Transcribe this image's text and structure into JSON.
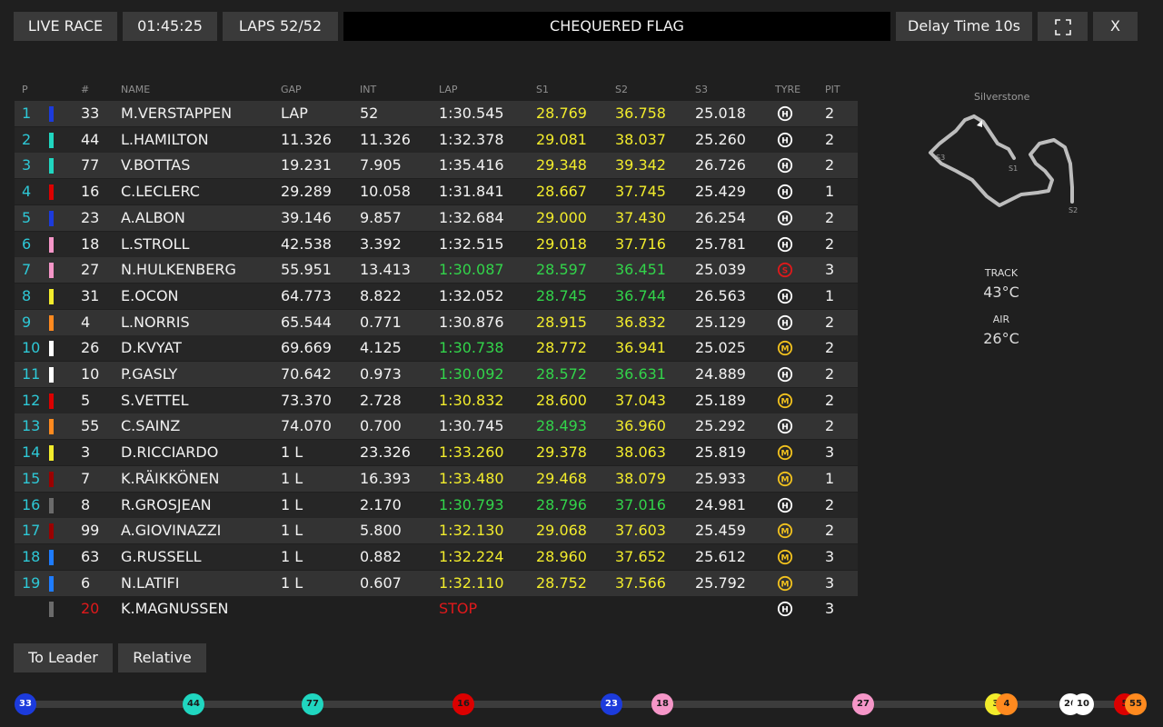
{
  "topbar": {
    "live_race": "LIVE RACE",
    "clock": "01:45:25",
    "laps": "LAPS 52/52",
    "flag": "CHEQUERED FLAG",
    "delay": "Delay Time 10s",
    "close": "X"
  },
  "headers": {
    "p": "P",
    "num": "#",
    "name": "NAME",
    "gap": "GAP",
    "int": "INT",
    "lap": "LAP",
    "s1": "S1",
    "s2": "S2",
    "s3": "S3",
    "tyre": "TYRE",
    "pit": "PIT"
  },
  "rows": [
    {
      "p": "1",
      "num": "33",
      "name": "M.VERSTAPPEN",
      "gap": "LAP",
      "int": "52",
      "lap": "1:30.545",
      "s1": "28.769",
      "s2": "36.758",
      "s3": "25.018",
      "tyre": "H",
      "pit": "2",
      "team": "#1c3bdc",
      "lapc": "white",
      "s1c": "yellow",
      "s2c": "yellow",
      "tc": "#ffffff"
    },
    {
      "p": "2",
      "num": "44",
      "name": "L.HAMILTON",
      "gap": "11.326",
      "int": "11.326",
      "lap": "1:32.378",
      "s1": "29.081",
      "s2": "38.037",
      "s3": "25.260",
      "tyre": "H",
      "pit": "2",
      "team": "#20d6c0",
      "lapc": "white",
      "s1c": "yellow",
      "s2c": "yellow",
      "tc": "#ffffff"
    },
    {
      "p": "3",
      "num": "77",
      "name": "V.BOTTAS",
      "gap": "19.231",
      "int": "7.905",
      "lap": "1:35.416",
      "s1": "29.348",
      "s2": "39.342",
      "s3": "26.726",
      "tyre": "H",
      "pit": "2",
      "team": "#20d6c0",
      "lapc": "white",
      "s1c": "yellow",
      "s2c": "yellow",
      "tc": "#ffffff"
    },
    {
      "p": "4",
      "num": "16",
      "name": "C.LECLERC",
      "gap": "29.289",
      "int": "10.058",
      "lap": "1:31.841",
      "s1": "28.667",
      "s2": "37.745",
      "s3": "25.429",
      "tyre": "H",
      "pit": "1",
      "team": "#dc0000",
      "lapc": "white",
      "s1c": "yellow",
      "s2c": "yellow",
      "tc": "#ffffff"
    },
    {
      "p": "5",
      "num": "23",
      "name": "A.ALBON",
      "gap": "39.146",
      "int": "9.857",
      "lap": "1:32.684",
      "s1": "29.000",
      "s2": "37.430",
      "s3": "26.254",
      "tyre": "H",
      "pit": "2",
      "team": "#1c3bdc",
      "lapc": "white",
      "s1c": "yellow",
      "s2c": "yellow",
      "tc": "#ffffff"
    },
    {
      "p": "6",
      "num": "18",
      "name": "L.STROLL",
      "gap": "42.538",
      "int": "3.392",
      "lap": "1:32.515",
      "s1": "29.018",
      "s2": "37.716",
      "s3": "25.781",
      "tyre": "H",
      "pit": "2",
      "team": "#f596c8",
      "lapc": "white",
      "s1c": "yellow",
      "s2c": "yellow",
      "tc": "#ffffff"
    },
    {
      "p": "7",
      "num": "27",
      "name": "N.HULKENBERG",
      "gap": "55.951",
      "int": "13.413",
      "lap": "1:30.087",
      "s1": "28.597",
      "s2": "36.451",
      "s3": "25.039",
      "tyre": "S",
      "pit": "3",
      "team": "#f596c8",
      "lapc": "green",
      "s1c": "green",
      "s2c": "green",
      "tc": "#e0191b"
    },
    {
      "p": "8",
      "num": "31",
      "name": "E.OCON",
      "gap": "64.773",
      "int": "8.822",
      "lap": "1:32.052",
      "s1": "28.745",
      "s2": "36.744",
      "s3": "26.563",
      "tyre": "H",
      "pit": "1",
      "team": "#f2ec2c",
      "lapc": "white",
      "s1c": "green",
      "s2c": "green",
      "tc": "#ffffff"
    },
    {
      "p": "9",
      "num": "4",
      "name": "L.NORRIS",
      "gap": "65.544",
      "int": "0.771",
      "lap": "1:30.876",
      "s1": "28.915",
      "s2": "36.832",
      "s3": "25.129",
      "tyre": "H",
      "pit": "2",
      "team": "#ff8a1f",
      "lapc": "white",
      "s1c": "yellow",
      "s2c": "yellow",
      "tc": "#ffffff"
    },
    {
      "p": "10",
      "num": "26",
      "name": "D.KVYAT",
      "gap": "69.669",
      "int": "4.125",
      "lap": "1:30.738",
      "s1": "28.772",
      "s2": "36.941",
      "s3": "25.025",
      "tyre": "M",
      "pit": "2",
      "team": "#ffffff",
      "lapc": "green",
      "s1c": "yellow",
      "s2c": "yellow",
      "tc": "#f2c21e"
    },
    {
      "p": "11",
      "num": "10",
      "name": "P.GASLY",
      "gap": "70.642",
      "int": "0.973",
      "lap": "1:30.092",
      "s1": "28.572",
      "s2": "36.631",
      "s3": "24.889",
      "tyre": "H",
      "pit": "2",
      "team": "#ffffff",
      "lapc": "green",
      "s1c": "green",
      "s2c": "green",
      "tc": "#ffffff"
    },
    {
      "p": "12",
      "num": "5",
      "name": "S.VETTEL",
      "gap": "73.370",
      "int": "2.728",
      "lap": "1:30.832",
      "s1": "28.600",
      "s2": "37.043",
      "s3": "25.189",
      "tyre": "M",
      "pit": "2",
      "team": "#dc0000",
      "lapc": "yellow",
      "s1c": "yellow",
      "s2c": "yellow",
      "tc": "#f2c21e"
    },
    {
      "p": "13",
      "num": "55",
      "name": "C.SAINZ",
      "gap": "74.070",
      "int": "0.700",
      "lap": "1:30.745",
      "s1": "28.493",
      "s2": "36.960",
      "s3": "25.292",
      "tyre": "H",
      "pit": "2",
      "team": "#ff8a1f",
      "lapc": "white",
      "s1c": "green",
      "s2c": "yellow",
      "tc": "#ffffff"
    },
    {
      "p": "14",
      "num": "3",
      "name": "D.RICCIARDO",
      "gap": "1 L",
      "int": "23.326",
      "lap": "1:33.260",
      "s1": "29.378",
      "s2": "38.063",
      "s3": "25.819",
      "tyre": "M",
      "pit": "3",
      "team": "#f2ec2c",
      "lapc": "yellow",
      "s1c": "yellow",
      "s2c": "yellow",
      "tc": "#f2c21e"
    },
    {
      "p": "15",
      "num": "7",
      "name": "K.RÄIKKÖNEN",
      "gap": "1 L",
      "int": "16.393",
      "lap": "1:33.480",
      "s1": "29.468",
      "s2": "38.079",
      "s3": "25.933",
      "tyre": "M",
      "pit": "1",
      "team": "#9b0000",
      "lapc": "yellow",
      "s1c": "yellow",
      "s2c": "yellow",
      "tc": "#f2c21e"
    },
    {
      "p": "16",
      "num": "8",
      "name": "R.GROSJEAN",
      "gap": "1 L",
      "int": "2.170",
      "lap": "1:30.793",
      "s1": "28.796",
      "s2": "37.016",
      "s3": "24.981",
      "tyre": "H",
      "pit": "2",
      "team": "#6b6b6b",
      "lapc": "green",
      "s1c": "green",
      "s2c": "green",
      "tc": "#ffffff"
    },
    {
      "p": "17",
      "num": "99",
      "name": "A.GIOVINAZZI",
      "gap": "1 L",
      "int": "5.800",
      "lap": "1:32.130",
      "s1": "29.068",
      "s2": "37.603",
      "s3": "25.459",
      "tyre": "M",
      "pit": "2",
      "team": "#9b0000",
      "lapc": "yellow",
      "s1c": "yellow",
      "s2c": "yellow",
      "tc": "#f2c21e"
    },
    {
      "p": "18",
      "num": "63",
      "name": "G.RUSSELL",
      "gap": "1 L",
      "int": "0.882",
      "lap": "1:32.224",
      "s1": "28.960",
      "s2": "37.652",
      "s3": "25.612",
      "tyre": "M",
      "pit": "3",
      "team": "#1e7cff",
      "lapc": "yellow",
      "s1c": "yellow",
      "s2c": "yellow",
      "tc": "#f2c21e"
    },
    {
      "p": "19",
      "num": "6",
      "name": "N.LATIFI",
      "gap": "1 L",
      "int": "0.607",
      "lap": "1:32.110",
      "s1": "28.752",
      "s2": "37.566",
      "s3": "25.792",
      "tyre": "M",
      "pit": "3",
      "team": "#1e7cff",
      "lapc": "yellow",
      "s1c": "yellow",
      "s2c": "yellow",
      "tc": "#f2c21e"
    },
    {
      "p": "",
      "num": "20",
      "name": "K.MAGNUSSEN",
      "gap": "",
      "int": "",
      "lap": "STOP",
      "s1": "",
      "s2": "",
      "s3": "",
      "tyre": "H",
      "pit": "3",
      "team": "#6b6b6b",
      "lapc": "red",
      "s1c": "white",
      "s2c": "white",
      "tc": "#ffffff",
      "dnf": true
    }
  ],
  "track": {
    "name": "Silverstone",
    "s1": "S1",
    "s2": "S2",
    "s3": "S3"
  },
  "weather": {
    "track_label": "TRACK",
    "track_temp": "43°C",
    "air_label": "AIR",
    "air_temp": "26°C"
  },
  "bottom": {
    "to_leader": "To Leader",
    "relative": "Relative"
  },
  "markers": [
    {
      "num": "33",
      "bg": "#1c3bdc",
      "fg": "#ffffff"
    },
    {
      "num": "44",
      "bg": "#20d6c0",
      "fg": "#1a1a1a"
    },
    {
      "num": "77",
      "bg": "#20d6c0",
      "fg": "#1a1a1a"
    },
    {
      "num": "16",
      "bg": "#dc0000",
      "fg": "#1a1a1a"
    },
    {
      "num": "23",
      "bg": "#1c3bdc",
      "fg": "#ffffff"
    },
    {
      "num": "18",
      "bg": "#f596c8",
      "fg": "#1a1a1a"
    },
    {
      "num": "27",
      "bg": "#f596c8",
      "fg": "#1a1a1a"
    },
    {
      "num": "3",
      "bg": "#f2ec2c",
      "fg": "#1a1a1a"
    },
    {
      "num": "4",
      "bg": "#ff8a1f",
      "fg": "#1a1a1a"
    },
    {
      "num": "26",
      "bg": "#ffffff",
      "fg": "#1a1a1a"
    },
    {
      "num": "10",
      "bg": "#ffffff",
      "fg": "#1a1a1a"
    },
    {
      "num": "5",
      "bg": "#dc0000",
      "fg": "#1a1a1a"
    },
    {
      "num": "55",
      "bg": "#ff8a1f",
      "fg": "#1a1a1a"
    }
  ]
}
